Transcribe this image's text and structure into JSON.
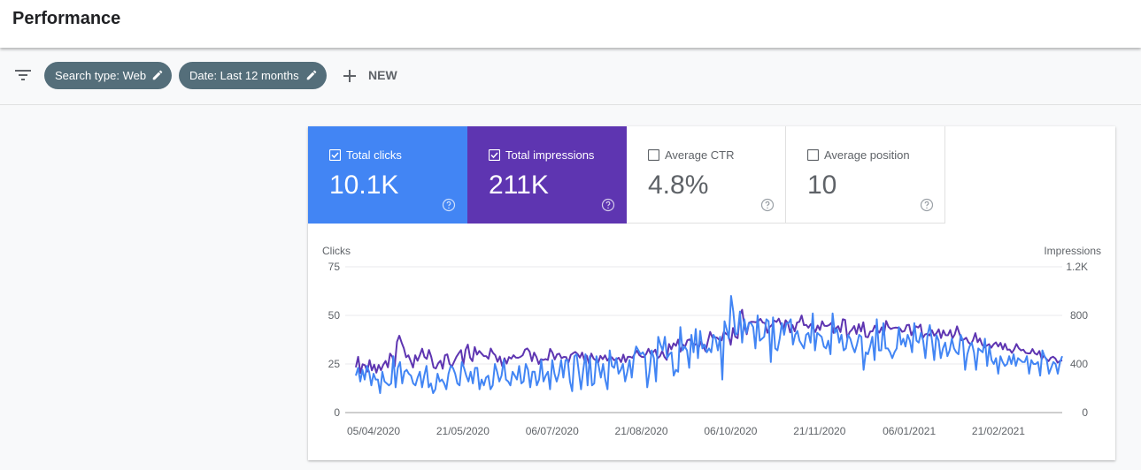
{
  "header": {
    "title": "Performance"
  },
  "filters": {
    "chips": [
      {
        "label": "Search type: Web"
      },
      {
        "label": "Date: Last 12 months"
      }
    ],
    "new_label": "NEW"
  },
  "metrics": [
    {
      "label": "Total clicks",
      "value": "10.1K",
      "checked": true,
      "color": "#4285f4"
    },
    {
      "label": "Total impressions",
      "value": "211K",
      "checked": true,
      "color": "#5e35b1"
    },
    {
      "label": "Average CTR",
      "value": "4.8%",
      "checked": false
    },
    {
      "label": "Average position",
      "value": "10",
      "checked": false
    }
  ],
  "chart_data": {
    "type": "line",
    "left_axis": {
      "label": "Clicks",
      "ticks": [
        "0",
        "25",
        "50",
        "75"
      ],
      "range": [
        0,
        75
      ]
    },
    "right_axis": {
      "label": "Impressions",
      "ticks": [
        "0",
        "400",
        "800",
        "1.2K"
      ],
      "range": [
        0,
        1200
      ]
    },
    "x_ticks": [
      "05/04/2020",
      "21/05/2020",
      "06/07/2020",
      "21/08/2020",
      "06/10/2020",
      "21/11/2020",
      "06/01/2021",
      "21/02/2021"
    ],
    "x_range": [
      "2020-04-05",
      "2021-04-04"
    ],
    "grid": true,
    "series": [
      {
        "name": "Clicks",
        "color": "#4285f4",
        "axis": "left",
        "values": [
          19,
          23,
          16,
          22,
          17,
          24,
          21,
          14,
          20,
          17,
          17,
          10,
          21,
          16,
          15,
          14,
          15,
          29,
          13,
          23,
          26,
          15,
          21,
          22,
          20,
          19,
          15,
          14,
          18,
          21,
          13,
          19,
          24,
          13,
          15,
          10,
          12,
          20,
          16,
          17,
          15,
          12,
          20,
          24,
          23,
          20,
          15,
          14,
          26,
          23,
          19,
          16,
          21,
          15,
          23,
          23,
          12,
          17,
          14,
          18,
          19,
          12,
          14,
          25,
          21,
          16,
          19,
          27,
          17,
          16,
          14,
          21,
          19,
          17,
          24,
          15,
          16,
          25,
          22,
          13,
          21,
          21,
          14,
          17,
          27,
          16,
          19,
          21,
          12,
          27,
          20,
          16,
          20,
          27,
          18,
          27,
          27,
          16,
          11,
          29,
          30,
          21,
          12,
          22,
          30,
          14,
          29,
          14,
          15,
          29,
          24,
          18,
          25,
          17,
          12,
          32,
          24,
          23,
          28,
          20,
          22,
          25,
          16,
          21,
          27,
          18,
          29,
          34,
          32,
          30,
          31,
          29,
          13,
          21,
          32,
          28,
          16,
          39,
          35,
          32,
          39,
          28,
          30,
          31,
          19,
          22,
          21,
          44,
          32,
          34,
          32,
          23,
          40,
          31,
          43,
          28,
          42,
          33,
          35,
          31,
          33,
          31,
          40,
          38,
          32,
          39,
          17,
          47,
          43,
          38,
          60,
          52,
          40,
          41,
          52,
          36,
          48,
          41,
          46,
          46,
          44,
          33,
          50,
          37,
          38,
          39,
          48,
          47,
          26,
          49,
          33,
          32,
          38,
          46,
          40,
          46,
          46,
          48,
          35,
          40,
          42,
          37,
          35,
          33,
          40,
          41,
          36,
          51,
          32,
          41,
          40,
          39,
          34,
          33,
          37,
          30,
          51,
          41,
          43,
          36,
          40,
          32,
          33,
          40,
          38,
          34,
          31,
          35,
          40,
          39,
          22,
          31,
          30,
          34,
          39,
          27,
          48,
          32,
          32,
          46,
          33,
          33,
          31,
          28,
          31,
          33,
          44,
          35,
          38,
          34,
          40,
          37,
          31,
          46,
          37,
          36,
          41,
          37,
          28,
          40,
          45,
          37,
          27,
          40,
          37,
          28,
          33,
          36,
          29,
          32,
          38,
          33,
          31,
          30,
          40,
          37,
          22,
          30,
          34,
          36,
          31,
          22,
          33,
          32,
          31,
          38,
          24,
          34,
          27,
          25,
          28,
          20,
          29,
          26,
          24,
          25,
          29,
          25,
          30,
          24,
          28,
          27,
          26,
          26,
          29,
          20,
          27,
          25,
          25,
          26,
          19,
          32,
          29,
          27,
          20,
          23,
          26,
          25,
          20,
          26,
          29
        ]
      },
      {
        "name": "Impressions",
        "color": "#5e35b1",
        "axis": "right",
        "values": [
          372,
          459,
          325,
          398,
          390,
          337,
          432,
          348,
          394,
          329,
          392,
          349,
          394,
          425,
          372,
          486,
          458,
          380,
          583,
          633,
          577,
          530,
          455,
          471,
          423,
          371,
          472,
          426,
          473,
          526,
          458,
          442,
          516,
          458,
          372,
          363,
          405,
          427,
          361,
          471,
          479,
          400,
          378,
          418,
          459,
          488,
          514,
          392,
          517,
          559,
          452,
          423,
          540,
          477,
          507,
          486,
          465,
          465,
          443,
          527,
          491,
          472,
          418,
          461,
          383,
          447,
          403,
          457,
          444,
          472,
          452,
          451,
          458,
          472,
          518,
          528,
          502,
          423,
          494,
          458,
          399,
          439,
          433,
          441,
          433,
          524,
          493,
          437,
          479,
          485,
          448,
          458,
          456,
          411,
          475,
          488,
          499,
          482,
          452,
          494,
          426,
          469,
          400,
          486,
          444,
          430,
          409,
          467,
          439,
          471,
          428,
          454,
          455,
          431,
          439,
          451,
          415,
          477,
          416,
          459,
          459,
          451,
          484,
          510,
          474,
          459,
          457,
          482,
          525,
          483,
          495,
          518,
          447,
          464,
          507,
          459,
          434,
          564,
          521,
          570,
          549,
          601,
          501,
          561,
          542,
          595,
          602,
          576,
          555,
          566,
          533,
          586,
          547,
          505,
          587,
          664,
          617,
          621,
          617,
          599,
          595,
          666,
          647,
          637,
          558,
          696,
          624,
          612,
          804,
          846,
          712,
          645,
          740,
          748,
          746,
          744,
          751,
          772,
          741,
          737,
          657,
          703,
          721,
          757,
          746,
          773,
          725,
          688,
          760,
          737,
          660,
          720,
          669,
          741,
          747,
          799,
          720,
          722,
          698,
          728,
          700,
          664,
          716,
          680,
          752,
          714,
          713,
          719,
          739,
          656,
          693,
          711,
          663,
          768,
          763,
          610,
          662,
          682,
          713,
          647,
          728,
          668,
          743,
          625,
          620,
          667,
          669,
          715,
          681,
          658,
          701,
          643,
          754,
          706,
          688,
          696,
          700,
          698,
          693,
          665,
          671,
          720,
          723,
          637,
          676,
          710,
          700,
          724,
          614,
          643,
          649,
          635,
          678,
          633,
          654,
          686,
          614,
          676,
          637,
          636,
          679,
          611,
          644,
          710,
          652,
          596,
          602,
          616,
          578,
          560,
          598,
          654,
          580,
          610,
          558,
          537,
          552,
          563,
          534,
          562,
          578,
          544,
          574,
          521,
          566,
          517,
          519,
          492,
          522,
          564,
          530,
          512,
          518,
          492,
          487,
          487,
          523,
          488,
          477,
          507,
          440,
          470,
          443,
          423,
          451,
          460,
          445,
          411,
          425,
          430
        ]
      }
    ]
  }
}
